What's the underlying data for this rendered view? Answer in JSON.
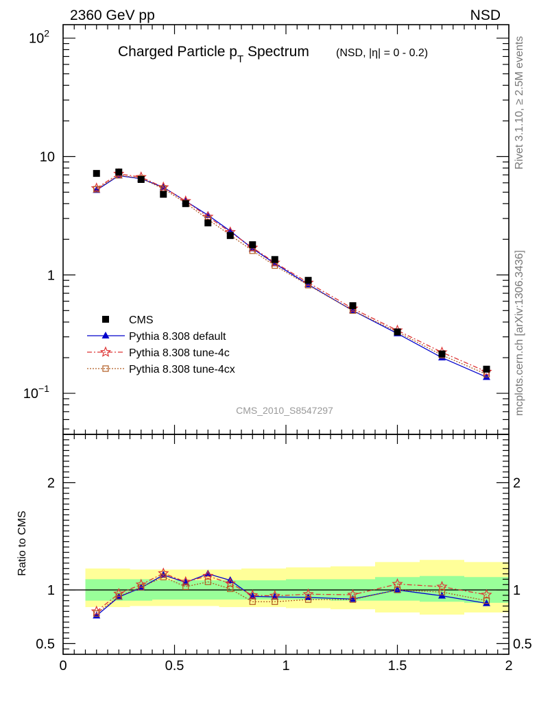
{
  "header": {
    "left": "2360 GeV pp",
    "right": "NSD"
  },
  "side_labels": {
    "rivet": "Rivet 3.1.10, ≥ 2.5M events",
    "mcplots": "mcplots.cern.ch [arXiv:1306.3436]"
  },
  "colors": {
    "cms": "#000000",
    "default": "#0000cc",
    "tune4c": "#dd3333",
    "tune4cx": "#b05a20",
    "band_inner": "#99ff99",
    "band_outer": "#ffff99"
  },
  "chart_data": {
    "type": "scatter",
    "title_main": "Charged Particle p",
    "title_sub": "T",
    "title_rest": " Spectrum",
    "title_extra": "(NSD, |η| =   0 - 0.2)",
    "analysis_label": "CMS_2010_S8547297",
    "x": [
      0.15,
      0.25,
      0.35,
      0.45,
      0.55,
      0.65,
      0.75,
      0.85,
      0.95,
      1.1,
      1.3,
      1.5,
      1.7,
      1.9
    ],
    "xlim": [
      0,
      2
    ],
    "x_ticks": [
      "0",
      "0.5",
      "1",
      "1.5",
      "2"
    ],
    "x_tick_values": [
      0,
      0.5,
      1,
      1.5,
      2
    ],
    "y_scale": "log",
    "ylim": [
      0.045,
      130
    ],
    "y_ticks": [
      {
        "value": 100,
        "base": "10",
        "exp": "2"
      },
      {
        "value": 10,
        "base": "10",
        "exp": ""
      },
      {
        "value": 1,
        "base": "1",
        "exp": ""
      },
      {
        "value": 0.1,
        "base": "10",
        "exp": "−1"
      }
    ],
    "series": [
      {
        "name": "CMS",
        "key": "cms",
        "values": [
          7.2,
          7.4,
          6.4,
          4.8,
          4.0,
          2.75,
          2.15,
          1.8,
          1.35,
          0.9,
          0.55,
          0.33,
          0.215,
          0.16
        ]
      },
      {
        "name": "Pythia 8.308 default",
        "key": "default",
        "values": [
          5.2,
          6.9,
          6.5,
          5.5,
          4.2,
          3.2,
          2.35,
          1.67,
          1.25,
          0.83,
          0.5,
          0.32,
          0.2,
          0.137
        ]
      },
      {
        "name": "Pythia 8.308 tune-4c",
        "key": "tune4c",
        "values": [
          5.4,
          7.15,
          6.7,
          5.5,
          4.2,
          3.1,
          2.3,
          1.7,
          1.27,
          0.86,
          0.52,
          0.34,
          0.222,
          0.152
        ]
      },
      {
        "name": "Pythia 8.308 tune-4cx",
        "key": "tune4cx",
        "values": [
          5.3,
          6.95,
          6.55,
          5.35,
          4.05,
          2.95,
          2.17,
          1.6,
          1.2,
          0.82,
          0.5,
          0.33,
          0.21,
          0.145
        ]
      }
    ],
    "legend": [
      {
        "label": "CMS",
        "key": "cms"
      },
      {
        "label": "Pythia 8.308 default",
        "key": "default"
      },
      {
        "label": "Pythia 8.308 tune-4c",
        "key": "tune4c"
      },
      {
        "label": "Pythia 8.308 tune-4cx",
        "key": "tune4cx"
      }
    ],
    "ratio": {
      "ylabel": "Ratio to CMS",
      "ylim": [
        0.4,
        2.45
      ],
      "y_ticks": [
        "0.5",
        "1",
        "2"
      ],
      "y_tick_values": [
        0.5,
        1,
        2
      ],
      "band_edges": [
        0.1,
        0.2,
        0.3,
        0.4,
        0.5,
        0.6,
        0.7,
        0.8,
        0.9,
        1.0,
        1.2,
        1.4,
        1.6,
        1.8,
        2.0
      ],
      "band_inner": [
        0.9,
        0.9,
        0.9,
        0.91,
        0.91,
        0.91,
        0.91,
        0.91,
        0.91,
        0.91,
        0.9,
        0.9,
        0.89,
        0.88
      ],
      "band_inner_hi": [
        1.1,
        1.1,
        1.1,
        1.09,
        1.09,
        1.09,
        1.09,
        1.09,
        1.09,
        1.1,
        1.1,
        1.12,
        1.13,
        1.12
      ],
      "band_outer_lo": [
        0.84,
        0.84,
        0.85,
        0.85,
        0.85,
        0.85,
        0.84,
        0.84,
        0.84,
        0.83,
        0.82,
        0.79,
        0.77,
        0.79
      ],
      "band_outer_hi": [
        1.2,
        1.2,
        1.19,
        1.19,
        1.19,
        1.19,
        1.19,
        1.2,
        1.2,
        1.21,
        1.22,
        1.26,
        1.28,
        1.26
      ],
      "series": [
        {
          "name": "Pythia 8.308 default",
          "key": "default",
          "values": [
            0.76,
            0.935,
            1.02,
            1.14,
            1.07,
            1.15,
            1.09,
            0.94,
            0.935,
            0.93,
            0.915,
            1.0,
            0.945,
            0.875
          ]
        },
        {
          "name": "Pythia 8.308 tune-4c",
          "key": "tune4c",
          "values": [
            0.8,
            0.965,
            1.05,
            1.155,
            1.075,
            1.13,
            1.06,
            0.95,
            0.945,
            0.96,
            0.955,
            1.055,
            1.03,
            0.955
          ]
        },
        {
          "name": "Pythia 8.308 tune-4cx",
          "key": "tune4cx",
          "values": [
            0.78,
            0.94,
            1.025,
            1.12,
            1.03,
            1.075,
            1.01,
            0.89,
            0.89,
            0.91,
            0.91,
            1.0,
            0.98,
            0.9
          ]
        }
      ]
    }
  }
}
